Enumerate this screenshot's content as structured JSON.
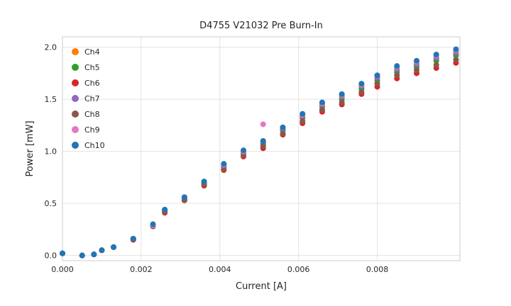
{
  "chart_data": {
    "type": "scatter",
    "title": "D4755 V21032 Pre Burn-In",
    "xlabel": "Current [A]",
    "ylabel": "Power [mW]",
    "xlim": [
      0.0,
      0.0101
    ],
    "ylim": [
      -0.05,
      2.1
    ],
    "grid": true,
    "legend_position": "upper left",
    "xticks": {
      "values": [
        0.0,
        0.002,
        0.004,
        0.006,
        0.008
      ],
      "labels": [
        "0.000",
        "0.002",
        "0.004",
        "0.006",
        "0.008"
      ]
    },
    "yticks": {
      "values": [
        0.0,
        0.5,
        1.0,
        1.5,
        2.0
      ],
      "labels": [
        "0.0",
        "0.5",
        "1.0",
        "1.5",
        "2.0"
      ]
    },
    "x": [
      0.0,
      0.0005,
      0.0008,
      0.001,
      0.0013,
      0.0018,
      0.0023,
      0.0026,
      0.0031,
      0.0036,
      0.0041,
      0.0046,
      0.0051,
      0.0056,
      0.0061,
      0.0066,
      0.0071,
      0.0076,
      0.008,
      0.0085,
      0.009,
      0.0095,
      0.01
    ],
    "series": [
      {
        "name": "Ch4",
        "color": "#ff7f0e",
        "values": [
          0.02,
          0.0,
          0.01,
          0.05,
          0.08,
          0.16,
          0.29,
          0.43,
          0.55,
          0.7,
          0.86,
          0.99,
          1.08,
          1.21,
          1.33,
          1.44,
          1.52,
          1.62,
          1.7,
          1.78,
          1.83,
          1.89,
          1.94
        ]
      },
      {
        "name": "Ch5",
        "color": "#2ca02c",
        "values": [
          0.02,
          0.0,
          0.01,
          0.05,
          0.08,
          0.16,
          0.29,
          0.43,
          0.54,
          0.69,
          0.85,
          0.98,
          1.07,
          1.2,
          1.32,
          1.43,
          1.5,
          1.6,
          1.68,
          1.76,
          1.81,
          1.87,
          1.92
        ]
      },
      {
        "name": "Ch6",
        "color": "#d62728",
        "values": [
          0.02,
          0.0,
          0.01,
          0.05,
          0.08,
          0.15,
          0.28,
          0.41,
          0.53,
          0.67,
          0.82,
          0.95,
          1.03,
          1.16,
          1.27,
          1.38,
          1.45,
          1.55,
          1.62,
          1.7,
          1.75,
          1.8,
          1.85
        ]
      },
      {
        "name": "Ch7",
        "color": "#9467bd",
        "values": [
          0.02,
          0.0,
          0.01,
          0.05,
          0.08,
          0.16,
          0.29,
          0.43,
          0.55,
          0.7,
          0.86,
          0.99,
          1.09,
          1.22,
          1.34,
          1.45,
          1.53,
          1.63,
          1.71,
          1.79,
          1.84,
          1.9,
          1.95
        ]
      },
      {
        "name": "Ch8",
        "color": "#8c564b",
        "values": [
          0.02,
          0.0,
          0.01,
          0.05,
          0.08,
          0.16,
          0.28,
          0.42,
          0.53,
          0.68,
          0.83,
          0.96,
          1.05,
          1.17,
          1.29,
          1.4,
          1.47,
          1.57,
          1.65,
          1.73,
          1.78,
          1.83,
          1.88
        ]
      },
      {
        "name": "Ch9",
        "color": "#e377c2",
        "values": [
          0.02,
          0.0,
          0.01,
          0.05,
          0.08,
          0.16,
          0.29,
          0.44,
          0.56,
          0.71,
          0.87,
          1.0,
          1.26,
          1.23,
          1.35,
          1.46,
          1.54,
          1.64,
          1.73,
          1.81,
          1.86,
          1.92,
          1.97
        ]
      },
      {
        "name": "Ch10",
        "color": "#1f77b4",
        "values": [
          0.02,
          0.0,
          0.01,
          0.05,
          0.08,
          0.16,
          0.3,
          0.44,
          0.56,
          0.71,
          0.88,
          1.01,
          1.1,
          1.23,
          1.36,
          1.47,
          1.55,
          1.65,
          1.73,
          1.82,
          1.87,
          1.93,
          1.98
        ]
      }
    ]
  },
  "style": {
    "background": "#ffffff",
    "grid_color": "#e2e2e2",
    "spine_color": "#cccccc",
    "text_color": "#262626",
    "marker_radius": 4,
    "legend_marker_radius": 5
  }
}
